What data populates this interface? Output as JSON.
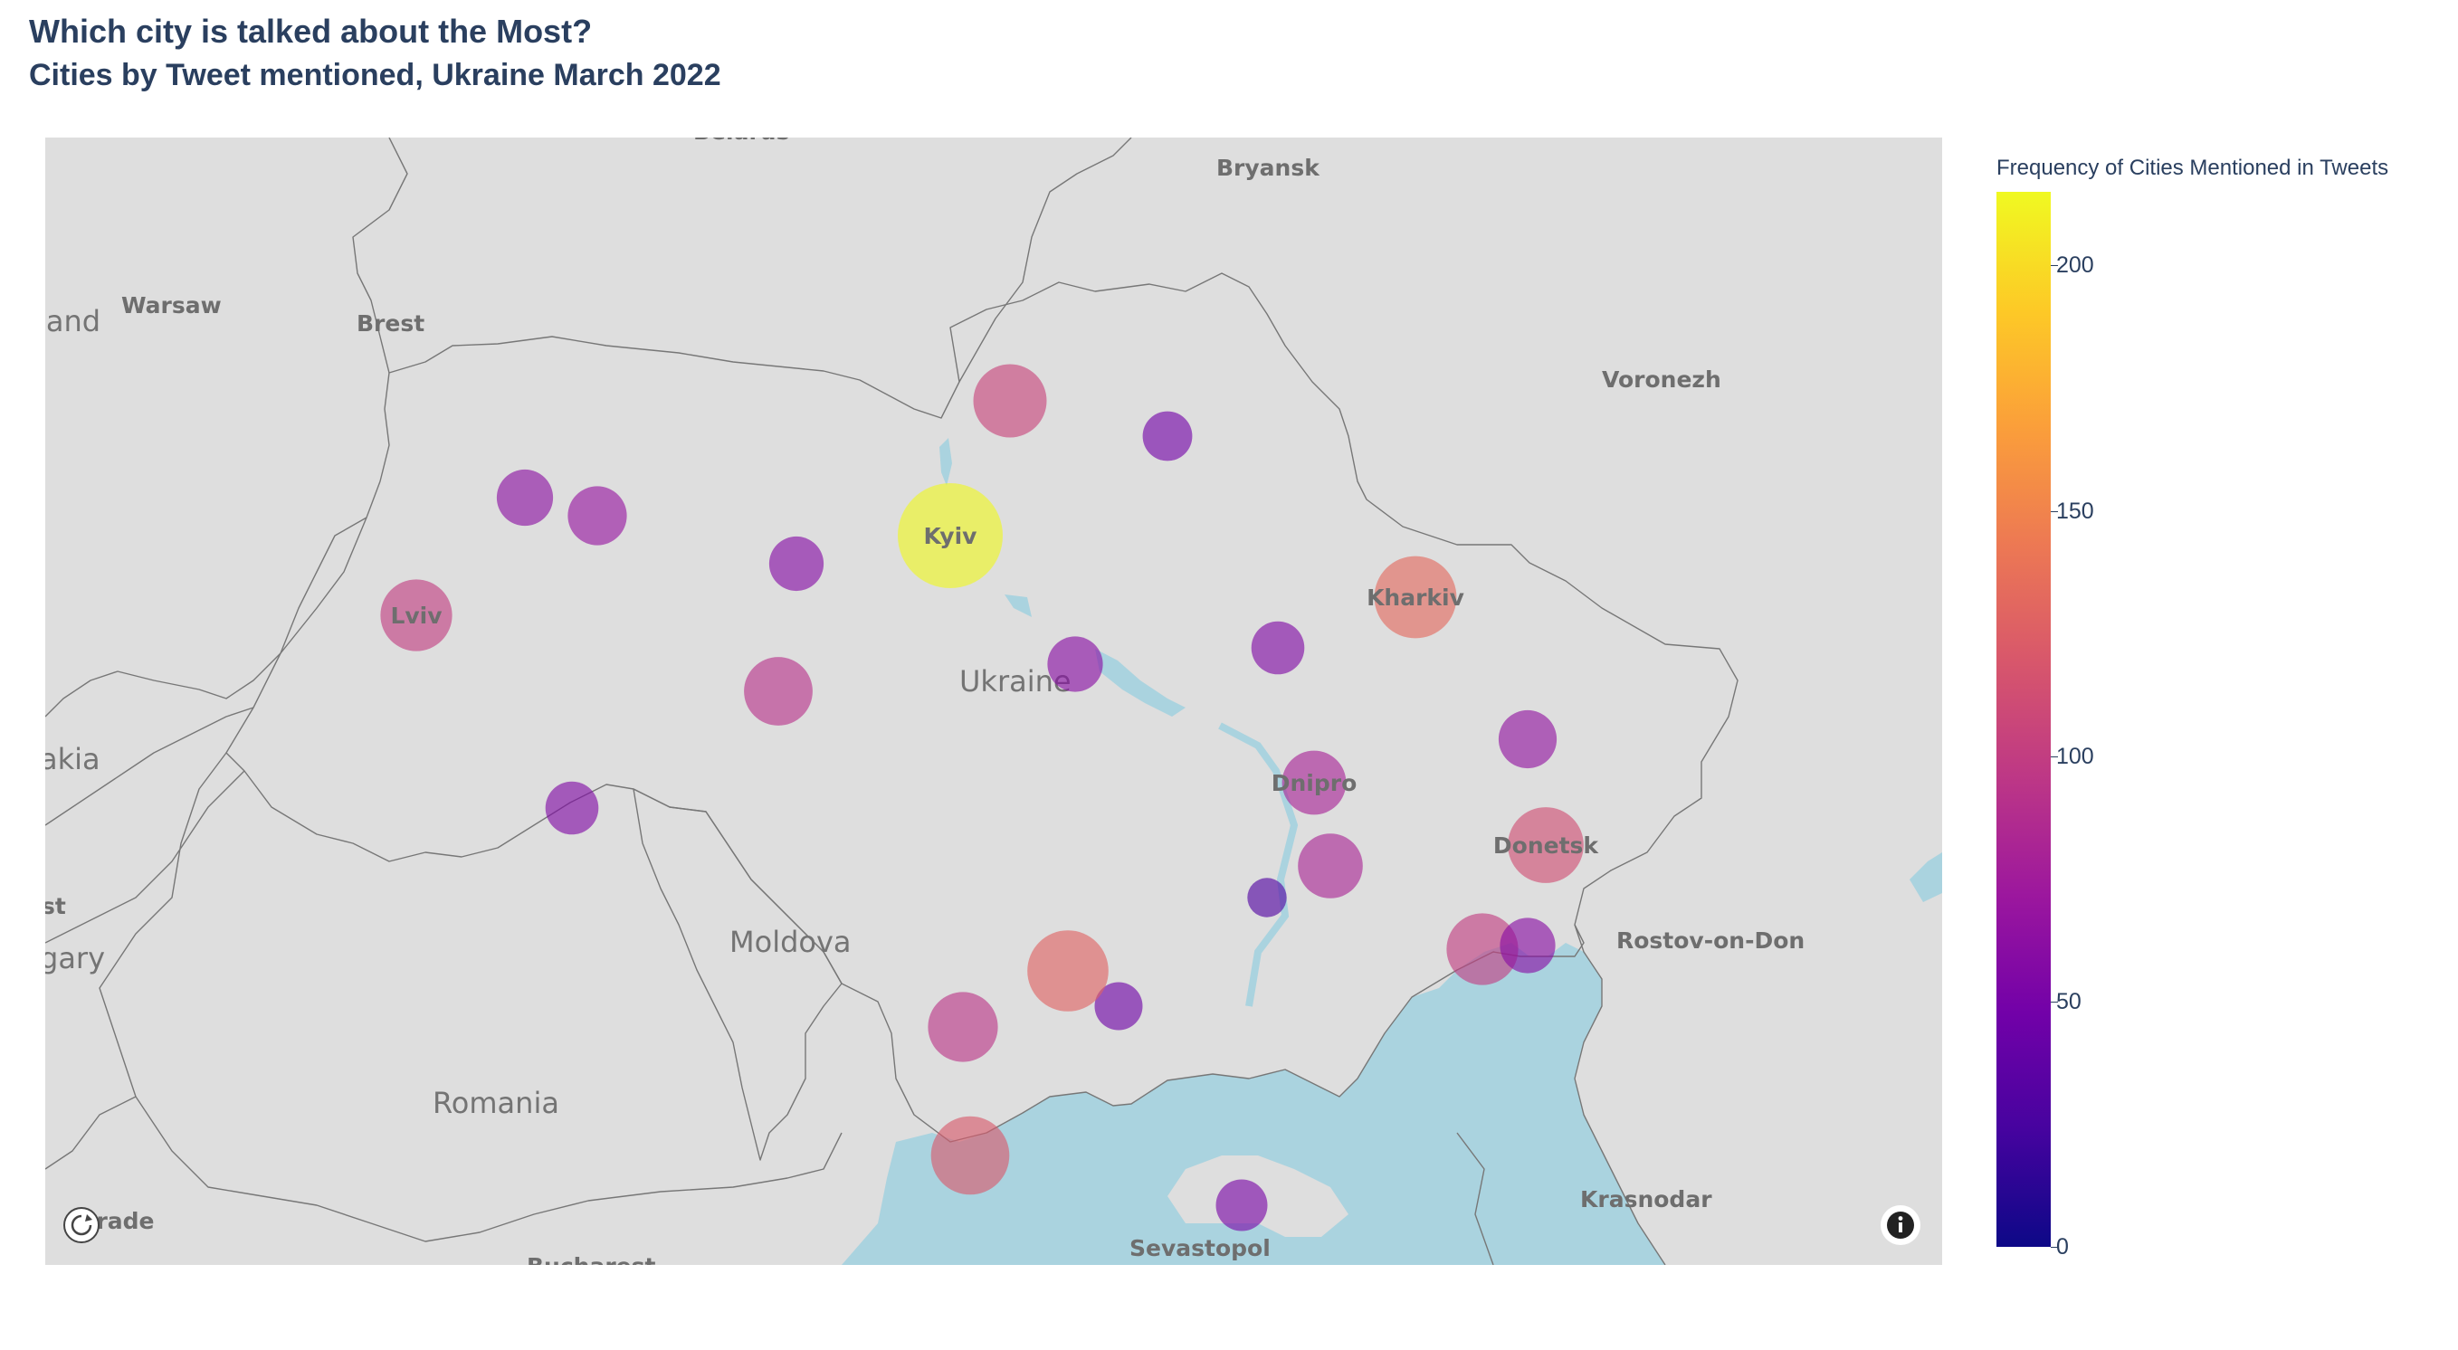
{
  "title": "Which city is talked about the Most?",
  "subtitle": "Cities by Tweet mentioned, Ukraine March 2022",
  "map": {
    "country_labels": [
      {
        "name": "Ukraine"
      },
      {
        "name": "Moldova"
      },
      {
        "name": "Romania"
      },
      {
        "name": "land"
      },
      {
        "name": "akia"
      },
      {
        "name": "gary"
      },
      {
        "name": "st"
      }
    ],
    "city_labels": [
      {
        "name": "Bryansk"
      },
      {
        "name": "Warsaw"
      },
      {
        "name": "Brest"
      },
      {
        "name": "Voronezh"
      },
      {
        "name": "Rostov-on-Don"
      },
      {
        "name": "Krasnodar"
      },
      {
        "name": "Sevastopol"
      },
      {
        "name": "lgrade"
      },
      {
        "name": "Bucharest"
      },
      {
        "name": "Belarus"
      }
    ],
    "markers": [
      {
        "label": "Kyiv",
        "value": 215
      },
      {
        "label": "",
        "value": 105
      },
      {
        "label": "",
        "value": 48
      },
      {
        "label": "",
        "value": 62
      },
      {
        "label": "",
        "value": 68
      },
      {
        "label": "",
        "value": 58
      },
      {
        "label": "Lviv",
        "value": 100
      },
      {
        "label": "",
        "value": 92
      },
      {
        "label": "",
        "value": 55
      },
      {
        "label": "",
        "value": 55
      },
      {
        "label": "",
        "value": 60
      },
      {
        "label": "Kharkiv",
        "value": 132
      },
      {
        "label": "",
        "value": 66
      },
      {
        "label": "Dnipro",
        "value": 80
      },
      {
        "label": "",
        "value": 82
      },
      {
        "label": "Donetsk",
        "value": 112
      },
      {
        "label": "",
        "value": 30
      },
      {
        "label": "",
        "value": 45
      },
      {
        "label": "",
        "value": 128
      },
      {
        "label": "",
        "value": 95
      },
      {
        "label": "",
        "value": 100
      },
      {
        "label": "",
        "value": 60
      },
      {
        "label": "",
        "value": 52
      },
      {
        "label": "",
        "value": 120
      }
    ],
    "colors": {
      "land": "#dedede",
      "water": "#aad3df",
      "border": "#777777"
    }
  },
  "colorbar": {
    "title": "Frequency of Cities Mentioned in Tweets",
    "ticks": [
      {
        "label": "200",
        "value": 200
      },
      {
        "label": "150",
        "value": 150
      },
      {
        "label": "100",
        "value": 100
      },
      {
        "label": "50",
        "value": 50
      },
      {
        "label": "0",
        "value": 0
      }
    ],
    "max": 215,
    "colorscale": [
      "#0d0887",
      "#46039f",
      "#7201a8",
      "#9c179e",
      "#bd3786",
      "#d8576b",
      "#ed7953",
      "#fb9f3a",
      "#fdca26",
      "#f0f921"
    ]
  },
  "controls": {
    "compass_icon": "compass-icon",
    "info_icon": "info-icon"
  }
}
